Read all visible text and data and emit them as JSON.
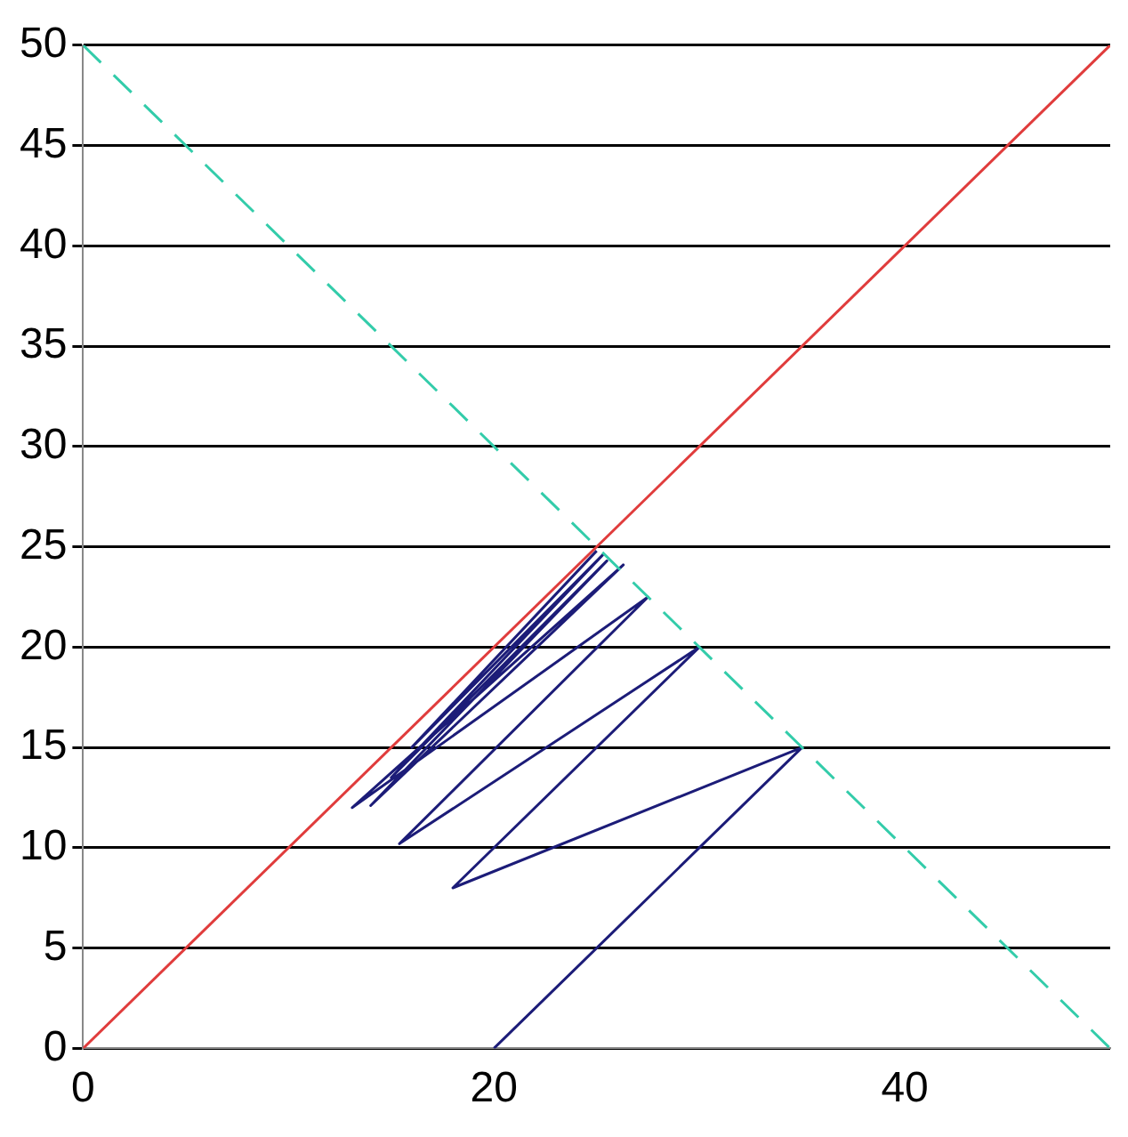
{
  "chart_data": {
    "type": "line",
    "xlim": [
      0,
      50
    ],
    "xticks": [
      0,
      20,
      40
    ],
    "ylim": [
      0,
      50
    ],
    "yticks": [
      0,
      5,
      10,
      15,
      20,
      25,
      30,
      35,
      40,
      45,
      50
    ],
    "grid": "y",
    "marker": "none",
    "series": [
      {
        "type": "line",
        "color": "#e03c3c",
        "x": [
          0,
          50
        ],
        "values": [
          0,
          50
        ]
      },
      {
        "type": "line",
        "color": "#33ccaa",
        "line_style": "dashed",
        "x": [
          0,
          50
        ],
        "values": [
          50,
          0
        ]
      },
      {
        "type": "line",
        "color": "#1c1c78",
        "x": [
          20,
          35,
          18,
          30,
          15.4,
          27.5,
          13.1,
          26.3,
          14,
          25.5,
          15,
          25.3,
          16,
          25
        ],
        "values": [
          0,
          15,
          8,
          20,
          10.2,
          22.5,
          12,
          24.1,
          12.1,
          24.3,
          13.5,
          24.6,
          15,
          24.8
        ]
      }
    ]
  }
}
